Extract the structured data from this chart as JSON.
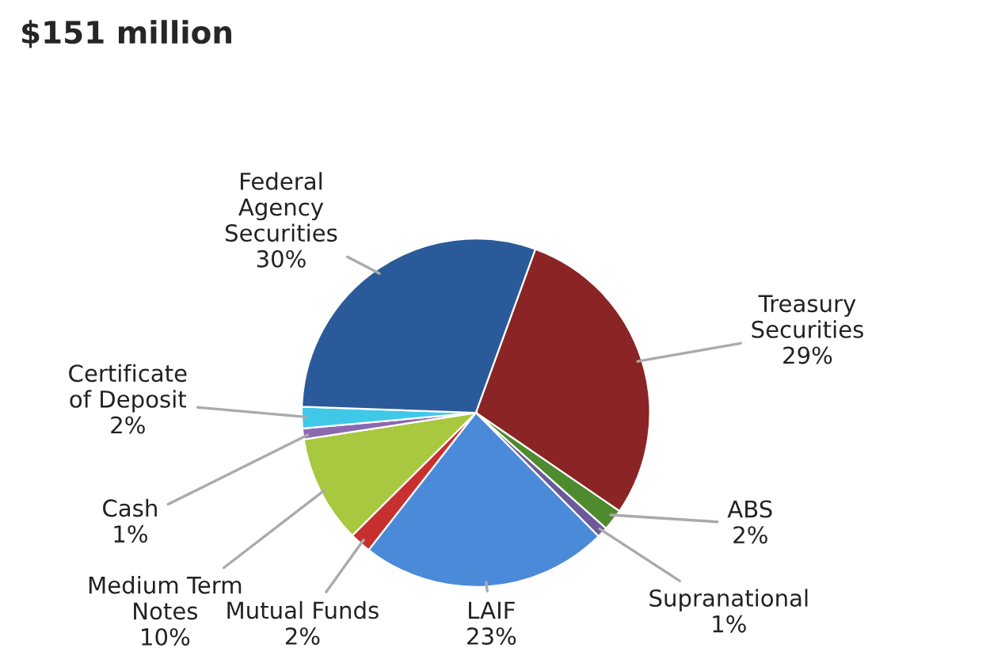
{
  "chart_data": {
    "type": "pie",
    "title": "$151 million",
    "categories": [
      "Treasury Securities",
      "ABS",
      "Supranational",
      "LAIF",
      "Mutual Funds",
      "Medium Term Notes",
      "Cash",
      "Certificate of Deposit",
      "Federal Agency Securities"
    ],
    "values": [
      29,
      2,
      1,
      23,
      2,
      10,
      1,
      2,
      30
    ],
    "colors": [
      "#8b2424",
      "#4e8a2e",
      "#6a5a9a",
      "#4a8ad8",
      "#c83030",
      "#a8c840",
      "#8a6ab0",
      "#40c8e8",
      "#2a5a9a"
    ],
    "value_labels": [
      "29%",
      "2%",
      "1%",
      "23%",
      "2%",
      "10%",
      "1%",
      "2%",
      "30%"
    ]
  }
}
